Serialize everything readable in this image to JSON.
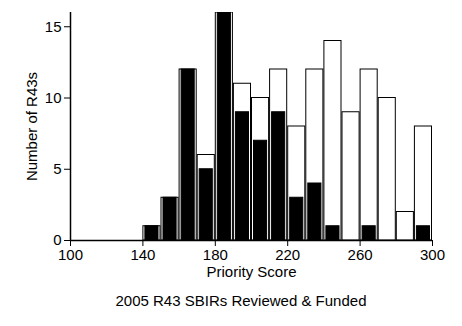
{
  "chart_data": {
    "type": "histogram",
    "title": "2005 R43 SBIRs Reviewed & Funded",
    "x_label": "Priority Score",
    "y_label": "Number of R43s",
    "bins": [
      140,
      150,
      160,
      170,
      180,
      190,
      200,
      210,
      220,
      230,
      240,
      250,
      260,
      270,
      280,
      290,
      300
    ],
    "series": [
      {
        "color": "#ffffff",
        "values": [
          1,
          3,
          12,
          6,
          16,
          11,
          10,
          12,
          8,
          12,
          14,
          9,
          12,
          10,
          2,
          8
        ]
      },
      {
        "color": "#000000",
        "values": [
          1,
          3,
          12,
          5,
          16,
          9,
          7,
          9,
          3,
          4,
          1,
          0,
          1,
          0,
          0,
          1
        ]
      }
    ],
    "xlim": [
      100,
      300
    ],
    "xticks": [
      100,
      140,
      180,
      220,
      260,
      300
    ],
    "ylim": [
      0,
      16
    ],
    "yticks": [
      0,
      5,
      10,
      15
    ],
    "grid": false
  }
}
